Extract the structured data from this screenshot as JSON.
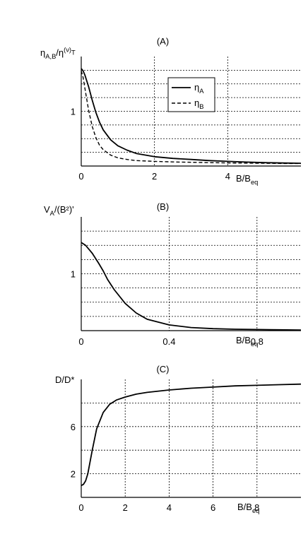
{
  "chart_data": [
    {
      "type": "line",
      "title": "(A)",
      "ylabel": "η_A,B/η^(ν)_T",
      "xlabel": "B/B_eq",
      "xlim": [
        0,
        6
      ],
      "ylim": [
        0,
        2.0
      ],
      "xticks": [
        0,
        2,
        4
      ],
      "yticks": [
        1
      ],
      "grid": true,
      "legend": {
        "position": "top-right"
      },
      "series": [
        {
          "name": "η_A",
          "style": "solid",
          "x": [
            0,
            0.05,
            0.1,
            0.2,
            0.3,
            0.4,
            0.5,
            0.6,
            0.8,
            1.0,
            1.25,
            1.5,
            2.0,
            2.5,
            3.0,
            3.5,
            4.0,
            4.5,
            5.0,
            5.5,
            6.0
          ],
          "y": [
            1.78,
            1.74,
            1.66,
            1.45,
            1.2,
            0.98,
            0.8,
            0.66,
            0.48,
            0.37,
            0.29,
            0.23,
            0.17,
            0.14,
            0.12,
            0.1,
            0.085,
            0.072,
            0.062,
            0.055,
            0.05
          ]
        },
        {
          "name": "η_B",
          "style": "dashed",
          "x": [
            0,
            0.05,
            0.1,
            0.2,
            0.3,
            0.4,
            0.5,
            0.6,
            0.8,
            1.0,
            1.25,
            1.5,
            2.0,
            2.5,
            3.0,
            3.5,
            4.0,
            4.5,
            5.0,
            5.5,
            6.0
          ],
          "y": [
            1.74,
            1.62,
            1.42,
            1.02,
            0.72,
            0.52,
            0.38,
            0.3,
            0.2,
            0.15,
            0.12,
            0.1,
            0.085,
            0.075,
            0.068,
            0.062,
            0.057,
            0.053,
            0.05,
            0.047,
            0.045
          ]
        }
      ]
    },
    {
      "type": "line",
      "title": "(B)",
      "ylabel": "V_A/(B²)'",
      "xlabel": "B/B_eq",
      "xlim": [
        0,
        1.0
      ],
      "ylim": [
        0,
        2.0
      ],
      "xticks": [
        0,
        0.4,
        0.8
      ],
      "yticks": [
        1
      ],
      "grid": true,
      "series": [
        {
          "style": "solid",
          "x": [
            0,
            0.02,
            0.05,
            0.08,
            0.1,
            0.12,
            0.15,
            0.2,
            0.25,
            0.3,
            0.4,
            0.5,
            0.6,
            0.7,
            0.8,
            0.9,
            1.0
          ],
          "y": [
            1.55,
            1.5,
            1.36,
            1.18,
            1.05,
            0.9,
            0.72,
            0.48,
            0.31,
            0.2,
            0.1,
            0.055,
            0.035,
            0.025,
            0.02,
            0.015,
            0.01
          ]
        }
      ]
    },
    {
      "type": "line",
      "title": "(C)",
      "ylabel": "D/D*",
      "xlabel": "B/B_eq",
      "xlim": [
        0,
        10
      ],
      "ylim": [
        0,
        10
      ],
      "xticks": [
        0,
        2,
        4,
        6,
        8
      ],
      "yticks": [
        2,
        6
      ],
      "grid": true,
      "series": [
        {
          "style": "solid",
          "x": [
            0,
            0.1,
            0.2,
            0.3,
            0.5,
            0.7,
            1.0,
            1.3,
            1.6,
            2.0,
            2.5,
            3.0,
            4.0,
            5.0,
            6.0,
            7.0,
            8.0,
            9.0,
            10.0
          ],
          "y": [
            1.0,
            1.1,
            1.4,
            2.0,
            4.0,
            5.8,
            7.2,
            7.9,
            8.25,
            8.5,
            8.75,
            8.9,
            9.1,
            9.25,
            9.35,
            9.45,
            9.5,
            9.55,
            9.6
          ]
        }
      ]
    }
  ]
}
